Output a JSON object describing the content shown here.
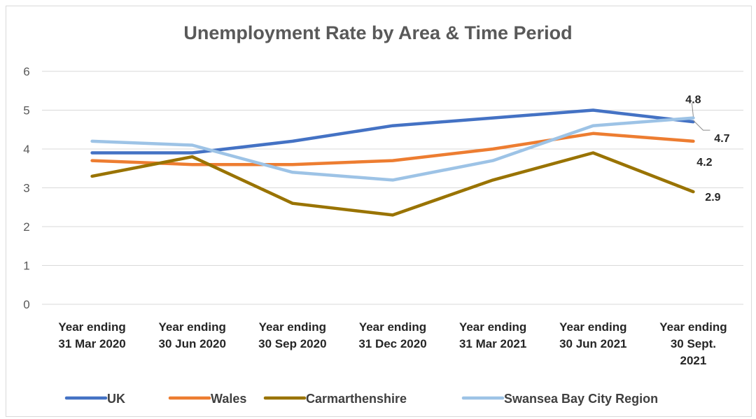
{
  "chart_data": {
    "type": "line",
    "title": "Unemployment Rate by Area & Time Period",
    "xlabel": "",
    "ylabel": "",
    "ylim": [
      0,
      6
    ],
    "yticks": [
      0,
      1,
      2,
      3,
      4,
      5,
      6
    ],
    "grid": true,
    "legend_position": "bottom",
    "categories": [
      [
        "Year ending",
        "31 Mar 2020"
      ],
      [
        "Year ending",
        "30 Jun 2020"
      ],
      [
        "Year ending",
        "30 Sep 2020"
      ],
      [
        "Year ending",
        "31 Dec 2020"
      ],
      [
        "Year ending",
        "31 Mar 2021"
      ],
      [
        "Year ending",
        "30 Jun 2021"
      ],
      [
        "Year ending",
        "30 Sept.",
        "2021"
      ]
    ],
    "series": [
      {
        "name": "UK",
        "color": "#4472c4",
        "values": [
          3.9,
          3.9,
          4.2,
          4.6,
          4.8,
          5.0,
          4.7
        ]
      },
      {
        "name": "Wales",
        "color": "#ed7d31",
        "values": [
          3.7,
          3.6,
          3.6,
          3.7,
          4.0,
          4.4,
          4.2
        ]
      },
      {
        "name": "Carmarthenshire",
        "color": "#997300",
        "values": [
          3.3,
          3.8,
          2.6,
          2.3,
          3.2,
          3.9,
          2.9
        ]
      },
      {
        "name": "Swansea Bay City Region",
        "color": "#9dc3e6",
        "values": [
          4.2,
          4.1,
          3.4,
          3.2,
          3.7,
          4.6,
          4.8
        ]
      }
    ],
    "data_labels": [
      {
        "series": "Swansea Bay City Region",
        "index": 6,
        "text": "4.8"
      },
      {
        "series": "UK",
        "index": 6,
        "text": "4.7"
      },
      {
        "series": "Wales",
        "index": 6,
        "text": "4.2"
      },
      {
        "series": "Carmarthenshire",
        "index": 6,
        "text": "2.9"
      }
    ]
  }
}
